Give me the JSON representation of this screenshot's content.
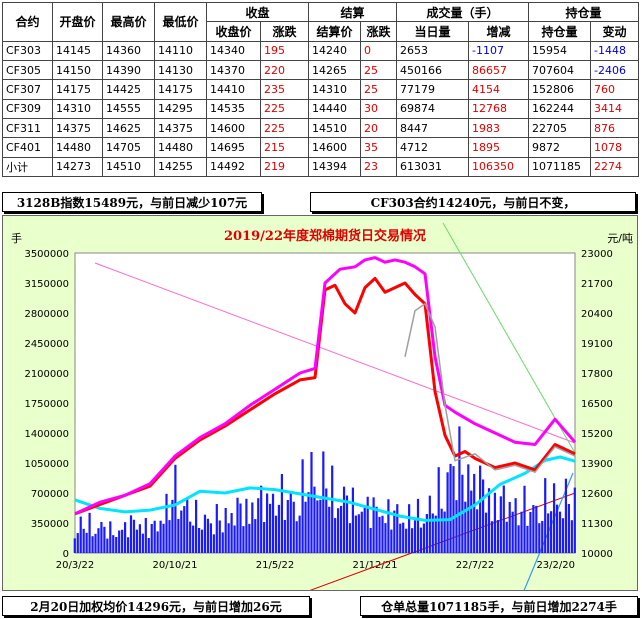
{
  "table": {
    "group_headers": {
      "contract": "合约",
      "open": "开盘价",
      "high": "最高价",
      "low": "最低价",
      "close_group": "收盘",
      "settle_group": "结算",
      "volume_group": "成交量（手）",
      "oi_group": "持仓量"
    },
    "sub_headers": {
      "close": "收盘价",
      "close_chg": "涨跌",
      "settle": "结算价",
      "settle_chg": "涨跌",
      "volume": "当日量",
      "volume_chg": "增减",
      "oi": "持仓量",
      "oi_chg": "变动"
    },
    "rows": [
      {
        "contract": "CF303",
        "open": "14145",
        "high": "14360",
        "low": "14110",
        "close": "14340",
        "close_chg": "195",
        "settle": "14240",
        "settle_chg": "0",
        "volume": "2653",
        "volume_chg": "-1107",
        "oi": "15954",
        "oi_chg": "-1448"
      },
      {
        "contract": "CF305",
        "open": "14150",
        "high": "14390",
        "low": "14130",
        "close": "14370",
        "close_chg": "220",
        "settle": "14265",
        "settle_chg": "25",
        "volume": "450166",
        "volume_chg": "86657",
        "oi": "707604",
        "oi_chg": "-2406"
      },
      {
        "contract": "CF307",
        "open": "14175",
        "high": "14425",
        "low": "14175",
        "close": "14410",
        "close_chg": "235",
        "settle": "14310",
        "settle_chg": "25",
        "volume": "77179",
        "volume_chg": "4154",
        "oi": "152806",
        "oi_chg": "760"
      },
      {
        "contract": "CF309",
        "open": "14310",
        "high": "14555",
        "low": "14295",
        "close": "14535",
        "close_chg": "225",
        "settle": "14440",
        "settle_chg": "30",
        "volume": "69874",
        "volume_chg": "12768",
        "oi": "162244",
        "oi_chg": "3414"
      },
      {
        "contract": "CF311",
        "open": "14375",
        "high": "14625",
        "low": "14375",
        "close": "14600",
        "close_chg": "225",
        "settle": "14510",
        "settle_chg": "20",
        "volume": "8447",
        "volume_chg": "1983",
        "oi": "22705",
        "oi_chg": "876"
      },
      {
        "contract": "CF401",
        "open": "14480",
        "high": "14705",
        "low": "14480",
        "close": "14695",
        "close_chg": "215",
        "settle": "14600",
        "settle_chg": "35",
        "volume": "4712",
        "volume_chg": "1895",
        "oi": "9872",
        "oi_chg": "1078"
      },
      {
        "contract": "小计",
        "open": "14273",
        "high": "14510",
        "low": "14255",
        "close": "14492",
        "close_chg": "219",
        "settle": "14394",
        "settle_chg": "23",
        "volume": "613031",
        "volume_chg": "106350",
        "oi": "1071185",
        "oi_chg": "2274"
      }
    ]
  },
  "annotations": {
    "index_note": "3128B指数15489元，与前日减少107元",
    "cf303_note": "CF303合约14240元，与前日不变，",
    "weighted_avg_note": "2月20日加权均价14296元，与前日增加26元",
    "warehouse_note": "仓单总量1071185手，与前日增加2274手"
  },
  "colors": {
    "chart_bg": "#e9ffcc",
    "title": "#e00000",
    "volume_bars": "#1a1aff",
    "open_interest_line": "#00e5ff",
    "price_red": "#ff0000",
    "price_magenta": "#ff00ff",
    "price_gray": "#a0a0a0",
    "trend_pink": "#ff66cc",
    "trend_green": "#66dd66",
    "trend_red": "#e00000",
    "trend_blue": "#3399ff"
  },
  "chart_data": {
    "type": "line",
    "title": "2019/22年度郑棉期货日交易情况",
    "left_unit": "手",
    "right_unit": "元/吨",
    "y_left": {
      "ylim": [
        0,
        3500000
      ],
      "ticks": [
        "0",
        "350000",
        "700000",
        "1050000",
        "1400000",
        "1750000",
        "2100000",
        "2450000",
        "2800000",
        "3150000",
        "3500000"
      ]
    },
    "y_right": {
      "ylim": [
        10000,
        23000
      ],
      "ticks": [
        "10000",
        "11300",
        "12600",
        "13900",
        "15200",
        "16500",
        "17800",
        "19100",
        "20400",
        "21700",
        "23000"
      ]
    },
    "x_ticks": [
      "20/3/22",
      "20/10/21",
      "21/5/22",
      "21/12/21",
      "22/7/22",
      "23/2/20"
    ],
    "series": [
      {
        "kind": "bar",
        "axis": "left",
        "color_key": "volume_bars",
        "x": [
          0,
          0.04,
          0.08,
          0.12,
          0.16,
          0.2,
          0.24,
          0.28,
          0.32,
          0.36,
          0.4,
          0.44,
          0.48,
          0.52,
          0.56,
          0.6,
          0.64,
          0.68,
          0.72,
          0.76,
          0.8,
          0.84,
          0.88,
          0.92,
          0.96,
          1.0
        ],
        "values": [
          380000,
          420000,
          300000,
          450000,
          360000,
          900000,
          520000,
          480000,
          600000,
          700000,
          820000,
          760000,
          1200000,
          880000,
          680000,
          640000,
          560000,
          520000,
          720000,
          1350000,
          1050000,
          760000,
          700000,
          640000,
          820000,
          720000
        ]
      },
      {
        "kind": "line",
        "axis": "left",
        "color_key": "open_interest_line",
        "x": [
          0,
          0.05,
          0.1,
          0.15,
          0.2,
          0.25,
          0.3,
          0.35,
          0.4,
          0.45,
          0.5,
          0.55,
          0.6,
          0.65,
          0.7,
          0.75,
          0.8,
          0.85,
          0.9,
          0.94,
          0.97,
          1.0
        ],
        "values": [
          620000,
          520000,
          480000,
          500000,
          560000,
          720000,
          700000,
          760000,
          740000,
          690000,
          640000,
          590000,
          510000,
          430000,
          380000,
          390000,
          560000,
          800000,
          930000,
          1080000,
          1120000,
          1071185
        ]
      },
      {
        "kind": "line",
        "axis": "right",
        "color_key": "price_red",
        "x": [
          0,
          0.05,
          0.1,
          0.15,
          0.2,
          0.25,
          0.3,
          0.35,
          0.4,
          0.45,
          0.48,
          0.5,
          0.52,
          0.54,
          0.56,
          0.58,
          0.6,
          0.62,
          0.64,
          0.66,
          0.68,
          0.7,
          0.72,
          0.74,
          0.76,
          0.78,
          0.8,
          0.84,
          0.88,
          0.92,
          0.96,
          1.0
        ],
        "values": [
          11700,
          12100,
          12500,
          12900,
          14100,
          14900,
          15500,
          16200,
          16900,
          17500,
          17600,
          21400,
          21600,
          20800,
          20400,
          21500,
          21900,
          21300,
          21500,
          21700,
          21200,
          20800,
          17000,
          15100,
          14200,
          14400,
          14100,
          13700,
          13900,
          13600,
          14700,
          14300
        ]
      },
      {
        "kind": "line",
        "axis": "right",
        "color_key": "price_magenta",
        "x": [
          0,
          0.05,
          0.1,
          0.15,
          0.2,
          0.25,
          0.3,
          0.35,
          0.4,
          0.45,
          0.48,
          0.5,
          0.53,
          0.56,
          0.58,
          0.6,
          0.62,
          0.64,
          0.66,
          0.68,
          0.7,
          0.72,
          0.74,
          0.76,
          0.8,
          0.84,
          0.88,
          0.92,
          0.96,
          1.0
        ],
        "values": [
          11700,
          12200,
          12500,
          13000,
          14200,
          15000,
          15600,
          16400,
          17100,
          17800,
          18000,
          21700,
          22300,
          22400,
          22700,
          22800,
          22600,
          22700,
          22600,
          22400,
          22100,
          18500,
          16400,
          16100,
          15600,
          15200,
          14800,
          14700,
          15800,
          14800
        ]
      },
      {
        "kind": "line",
        "axis": "right",
        "color_key": "price_gray",
        "x": [
          0.66,
          0.68,
          0.7,
          0.72,
          0.74,
          0.76,
          0.8,
          0.84,
          0.88,
          0.92,
          0.96,
          1.0
        ],
        "values": [
          18500,
          20500,
          20800,
          19800,
          16400,
          14000,
          14300,
          13600,
          13800,
          13500,
          14600,
          14200
        ]
      }
    ]
  }
}
